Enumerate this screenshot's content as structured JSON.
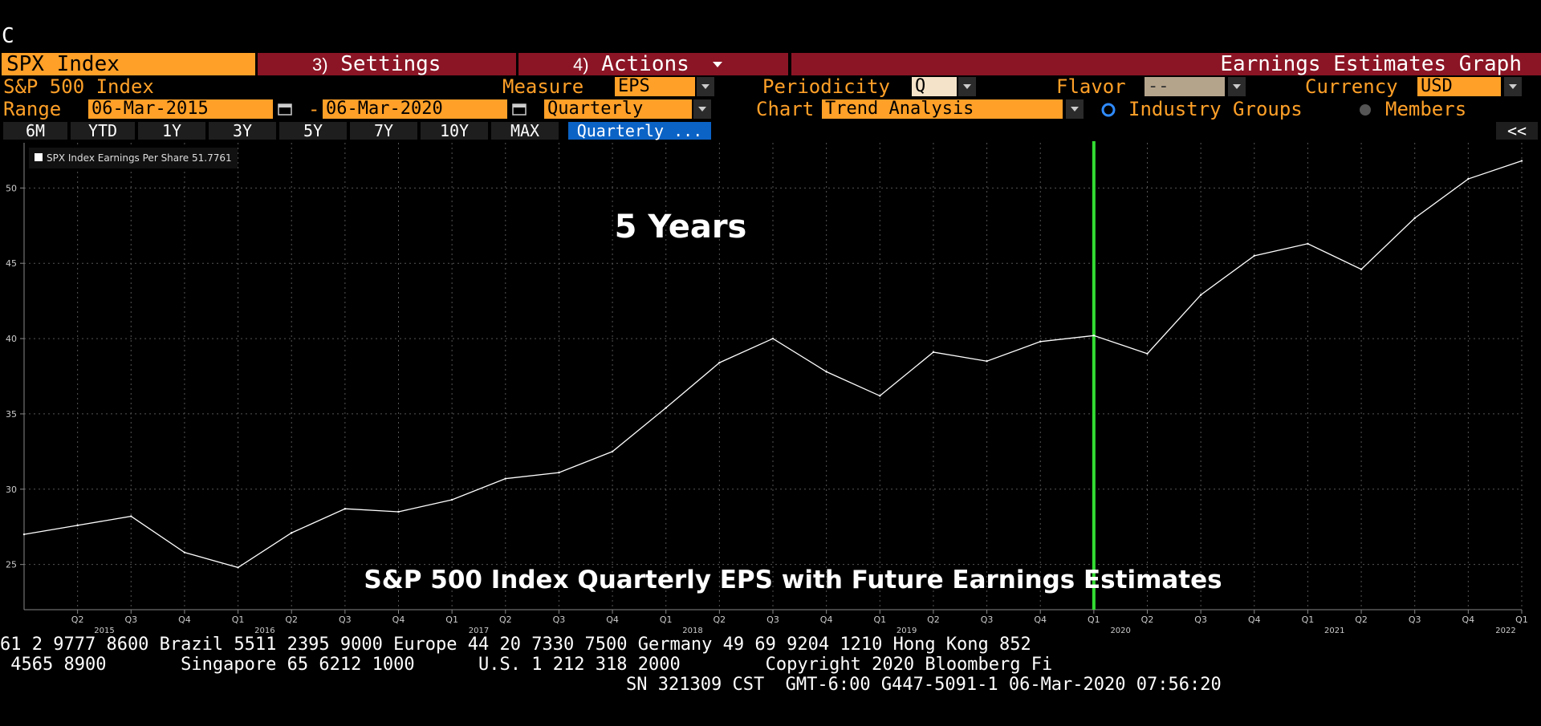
{
  "corner_letter": "C",
  "tabs": {
    "security": "SPX Index",
    "settings_num": "3)",
    "settings": "Settings",
    "actions_num": "4)",
    "actions": "Actions",
    "function_title": "Earnings Estimates Graph"
  },
  "row1": {
    "security_name": "S&P 500 Index",
    "measure_label": "Measure",
    "measure_value": "EPS",
    "periodicity_label": "Periodicity",
    "periodicity_value": "Q",
    "flavor_label": "Flavor",
    "flavor_value": "--",
    "currency_label": "Currency",
    "currency_value": "USD"
  },
  "row2": {
    "range_label": "Range",
    "start_date": "06-Mar-2015",
    "dash": "-",
    "end_date": "06-Mar-2020",
    "frequency": "Quarterly",
    "chart_label": "Chart",
    "chart_value": "Trend Analysis",
    "industry_groups": "Industry Groups",
    "members": "Members"
  },
  "range_buttons": [
    "6M",
    "YTD",
    "1Y",
    "3Y",
    "5Y",
    "7Y",
    "10Y",
    "MAX"
  ],
  "quarterly_button": "Quarterly ...",
  "collapse_button": "<<",
  "colors": {
    "accent": "#ffa028",
    "tab_red": "#8b1525",
    "divider_green": "#33dd33",
    "line": "#ffffff",
    "blue": "#0b63c6"
  },
  "icons": {
    "calendar": "calendar-icon",
    "dropdown": "chevron-down-icon",
    "radio": "radio-icon"
  },
  "chart_data": {
    "type": "line",
    "legend": "SPX Index Earnings Per Share 51.7761",
    "legend_placement": "top-left",
    "annotations": [
      "5 Years",
      "S&P 500 Index Quarterly EPS with Future Earnings Estimates"
    ],
    "divider_at": "Q1 2020",
    "grid": true,
    "ylim": [
      22,
      53
    ],
    "y_ticks": [
      25,
      30,
      35,
      40,
      45,
      50
    ],
    "x_quarter_labels": [
      "Q2",
      "Q3",
      "Q4",
      "Q1",
      "Q2",
      "Q3",
      "Q4",
      "Q1",
      "Q2",
      "Q3",
      "Q4",
      "Q1",
      "Q2",
      "Q3",
      "Q4",
      "Q1",
      "Q2",
      "Q3",
      "Q4",
      "Q1",
      "Q2",
      "Q3",
      "Q4",
      "Q1",
      "Q2",
      "Q3",
      "Q4",
      "Q1"
    ],
    "x_year_labels": [
      "2015",
      "2016",
      "2017",
      "2018",
      "2019",
      "2020",
      "2021",
      "2022"
    ],
    "series": [
      {
        "values": [
          27.0,
          27.6,
          28.2,
          25.8,
          24.8,
          27.1,
          28.7,
          28.5,
          29.3,
          30.7,
          31.1,
          32.5,
          35.4,
          38.4,
          40.0,
          37.8,
          36.2,
          39.1,
          38.5,
          39.8,
          40.2,
          39.0,
          42.9,
          45.5,
          46.3,
          44.6,
          48.0,
          50.6,
          51.8
        ]
      }
    ]
  },
  "footer": {
    "line1": "61 2 9777 8600 Brazil 5511 2395 9000 Europe 44 20 7330 7500 Germany 49 69 9204 1210 Hong Kong 852",
    "line2": " 4565 8900       Singapore 65 6212 1000      U.S. 1 212 318 2000        Copyright 2020 Bloomberg Fi",
    "line3": "SN 321309 CST  GMT-6:00 G447-5091-1 06-Mar-2020 07:56:20"
  }
}
